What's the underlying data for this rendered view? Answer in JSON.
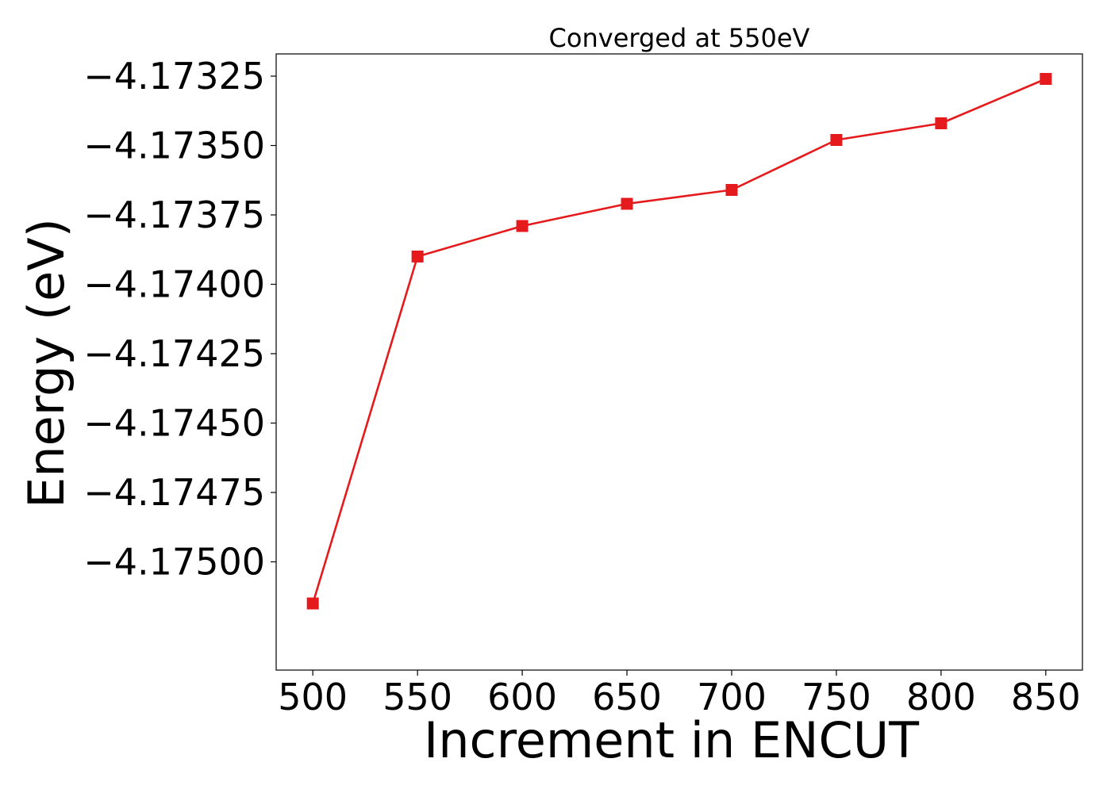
{
  "chart_data": {
    "type": "line",
    "title": "Converged at 550eV",
    "xlabel": "Increment in ENCUT",
    "ylabel": "Energy (eV)",
    "x": [
      500,
      550,
      600,
      650,
      700,
      750,
      800,
      850
    ],
    "series": [
      {
        "values": [
          -4.17515,
          -4.1739,
          -4.17379,
          -4.17371,
          -4.17366,
          -4.17348,
          -4.17342,
          -4.17326
        ],
        "color": "#e41a1c",
        "marker": "square"
      }
    ],
    "xlim": [
      482.5,
      867.5
    ],
    "ylim": [
      -4.17539,
      -4.17317
    ],
    "xticks": [
      500,
      550,
      600,
      650,
      700,
      750,
      800,
      850
    ],
    "xtick_labels": [
      "500",
      "550",
      "600",
      "650",
      "700",
      "750",
      "800",
      "850"
    ],
    "yticks": [
      -4.17325,
      -4.1735,
      -4.17375,
      -4.174,
      -4.17425,
      -4.1745,
      -4.17475,
      -4.175
    ],
    "ytick_labels": [
      "−4.17325",
      "−4.17350",
      "−4.17375",
      "−4.17400",
      "−4.17425",
      "−4.17450",
      "−4.17475",
      "−4.17500"
    ],
    "grid": false,
    "legend": "none"
  }
}
